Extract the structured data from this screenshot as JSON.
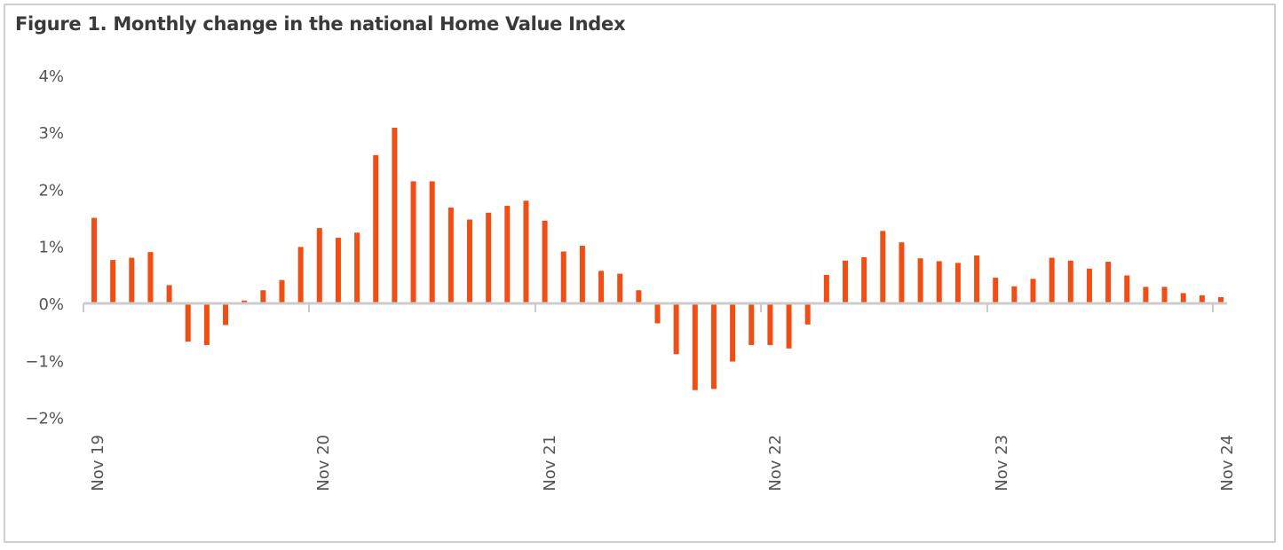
{
  "title": "Figure 1. Monthly change in the national Home Value Index",
  "colors": {
    "bar": "#f04e15",
    "axis": "#cccccc",
    "text": "#555555",
    "title": "#3a3a3a"
  },
  "chart_data": {
    "type": "bar",
    "title": "Figure 1. Monthly change in the national Home Value Index",
    "xlabel": "",
    "ylabel": "",
    "ylim": [
      -2,
      4
    ],
    "yticks": [
      4,
      3,
      2,
      1,
      0,
      -1,
      -2
    ],
    "ytick_labels": [
      "4%",
      "3%",
      "2%",
      "1%",
      "0%",
      "−1%",
      "−2%"
    ],
    "xtick_labels": [
      "Nov 19",
      "Nov 20",
      "Nov 21",
      "Nov 22",
      "Nov 23",
      "Nov 24"
    ],
    "categories": [
      "Nov 19",
      "Dec 19",
      "Jan 20",
      "Feb 20",
      "Mar 20",
      "Apr 20",
      "May 20",
      "Jun 20",
      "Jul 20",
      "Aug 20",
      "Sep 20",
      "Oct 20",
      "Nov 20",
      "Dec 20",
      "Jan 21",
      "Feb 21",
      "Mar 21",
      "Apr 21",
      "May 21",
      "Jun 21",
      "Jul 21",
      "Aug 21",
      "Sep 21",
      "Oct 21",
      "Nov 21",
      "Dec 21",
      "Jan 22",
      "Feb 22",
      "Mar 22",
      "Apr 22",
      "May 22",
      "Jun 22",
      "Jul 22",
      "Aug 22",
      "Sep 22",
      "Oct 22",
      "Nov 22",
      "Dec 22",
      "Jan 23",
      "Feb 23",
      "Mar 23",
      "Apr 23",
      "May 23",
      "Jun 23",
      "Jul 23",
      "Aug 23",
      "Sep 23",
      "Oct 23",
      "Nov 23",
      "Dec 23",
      "Jan 24",
      "Feb 24",
      "Mar 24",
      "Apr 24",
      "May 24",
      "Jun 24",
      "Jul 24",
      "Aug 24",
      "Sep 24",
      "Oct 24",
      "Nov 24"
    ],
    "values": [
      1.5,
      0.76,
      0.8,
      0.9,
      0.32,
      -0.67,
      -0.73,
      -0.38,
      0.05,
      0.23,
      0.41,
      0.99,
      1.32,
      1.15,
      1.24,
      2.6,
      3.08,
      2.14,
      2.14,
      1.68,
      1.47,
      1.59,
      1.71,
      1.8,
      1.45,
      0.91,
      1.01,
      0.57,
      0.52,
      0.23,
      -0.35,
      -0.89,
      -1.52,
      -1.5,
      -1.02,
      -0.73,
      -0.73,
      -0.79,
      -0.37,
      0.5,
      0.75,
      0.81,
      1.27,
      1.07,
      0.79,
      0.74,
      0.71,
      0.84,
      0.45,
      0.3,
      0.43,
      0.8,
      0.75,
      0.61,
      0.73,
      0.49,
      0.29,
      0.29,
      0.18,
      0.14,
      0.11
    ],
    "grid": false,
    "legend": "none"
  }
}
